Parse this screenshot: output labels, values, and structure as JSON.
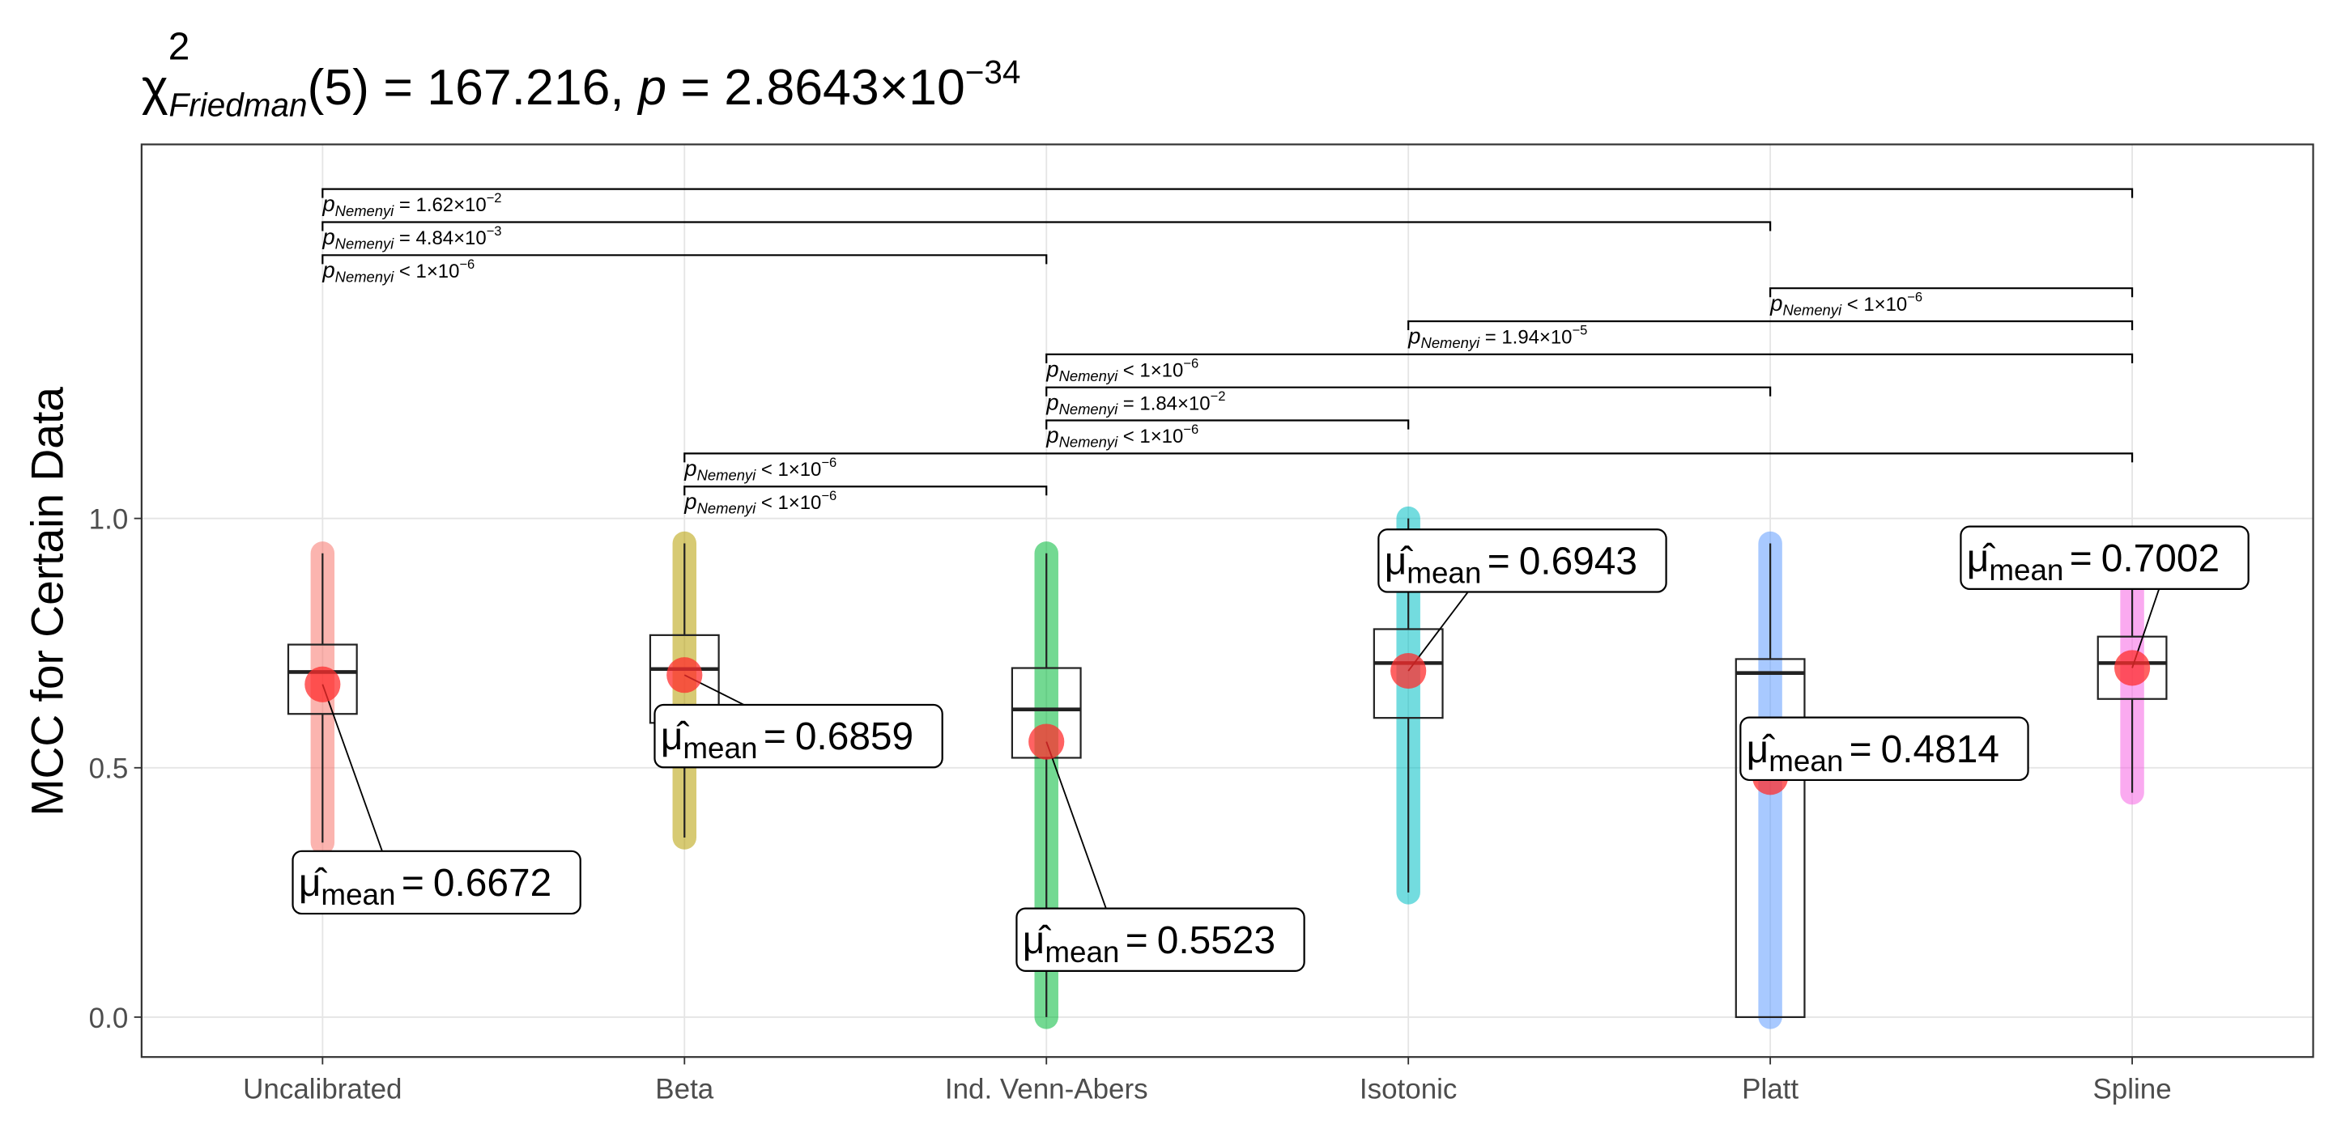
{
  "chart_data": {
    "type": "box",
    "title": {
      "chi": "χ",
      "chi_exp": "2",
      "chi_sub": "Friedman",
      "stat": "(5) = 167.216, ",
      "p": "p",
      "p_text": " = 2.8643×10",
      "p_exp": "−34"
    },
    "y_label": "MCC for Certain Data",
    "categories": [
      "Uncalibrated",
      "Beta",
      "Ind. Venn-Abers",
      "Isotonic",
      "Platt",
      "Spline"
    ],
    "colors": [
      "#F8766D",
      "#B79F00",
      "#00BA38",
      "#00BFC4",
      "#619CFF",
      "#F564E3"
    ],
    "whisker_low": [
      0.35,
      0.36,
      0.0,
      0.25,
      0.0,
      0.45
    ],
    "q1": [
      0.608,
      0.59,
      0.52,
      0.6,
      0.0,
      0.638
    ],
    "median": [
      0.692,
      0.698,
      0.617,
      0.71,
      0.69,
      0.71
    ],
    "q3": [
      0.747,
      0.766,
      0.7,
      0.778,
      0.718,
      0.763
    ],
    "whisker_high": [
      0.93,
      0.95,
      0.93,
      1.0,
      0.95,
      0.96
    ],
    "means": [
      0.6672,
      0.6859,
      0.5523,
      0.6943,
      0.4814,
      0.7002
    ],
    "mean_symbol": "μ̂",
    "mean_sub": "mean",
    "mean_eq": "=",
    "ylim": [
      -0.08,
      1.75
    ],
    "yticks": [
      {
        "value": 0,
        "label": "0.0"
      },
      {
        "value": 0.5,
        "label": "0.5"
      },
      {
        "value": 1,
        "label": "1.0"
      }
    ],
    "grid": true,
    "p_symbol": "p",
    "p_sub": "Nemenyi",
    "comparisons": [
      {
        "from": "Uncalibrated",
        "to": "Spline",
        "text": " = 1.62×10",
        "exp": "−2"
      },
      {
        "from": "Uncalibrated",
        "to": "Platt",
        "text": " = 4.84×10",
        "exp": "−3"
      },
      {
        "from": "Uncalibrated",
        "to": "Ind. Venn-Abers",
        "text": " < 1×10",
        "exp": "−6"
      },
      {
        "from": "Platt",
        "to": "Spline",
        "text": " < 1×10",
        "exp": "−6"
      },
      {
        "from": "Isotonic",
        "to": "Spline",
        "text": " = 1.94×10",
        "exp": "−5"
      },
      {
        "from": "Ind. Venn-Abers",
        "to": "Spline",
        "text": " < 1×10",
        "exp": "−6"
      },
      {
        "from": "Ind. Venn-Abers",
        "to": "Platt",
        "text": " = 1.84×10",
        "exp": "−2"
      },
      {
        "from": "Ind. Venn-Abers",
        "to": "Isotonic",
        "text": " < 1×10",
        "exp": "−6"
      },
      {
        "from": "Beta",
        "to": "Spline",
        "text": " < 1×10",
        "exp": "−6"
      },
      {
        "from": "Beta",
        "to": "Ind. Venn-Abers",
        "text": " < 1×10",
        "exp": "−6"
      }
    ]
  }
}
